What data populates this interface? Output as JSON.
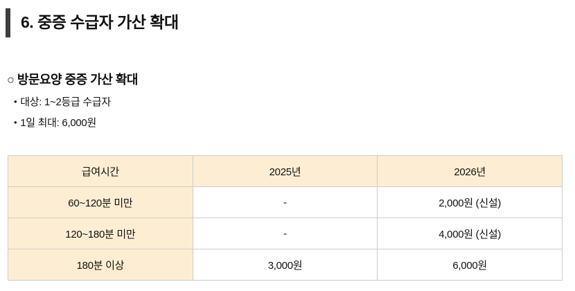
{
  "page": {
    "title": "6. 중증 수급자 가산 확대"
  },
  "section": {
    "heading": "○ 방문요양 중증 가산 확대",
    "bullet_marker": "•",
    "bullets": [
      "대상: 1~2등급 수급자",
      "1일 최대: 6,000원"
    ]
  },
  "table": {
    "headers": [
      "급여시간",
      "2025년",
      "2026년"
    ],
    "rows": [
      [
        "60~120분 미만",
        "-",
        "2,000원 (신설)"
      ],
      [
        "120~180분 미만",
        "-",
        "4,000원 (신설)"
      ],
      [
        "180분 이상",
        "3,000원",
        "6,000원"
      ]
    ]
  },
  "colors": {
    "accent_bar": "#3f3f3f",
    "table_header_bg": "#fdeed3",
    "table_border": "#cbcbcb",
    "text": "#111111",
    "page_bg": "#ffffff"
  }
}
